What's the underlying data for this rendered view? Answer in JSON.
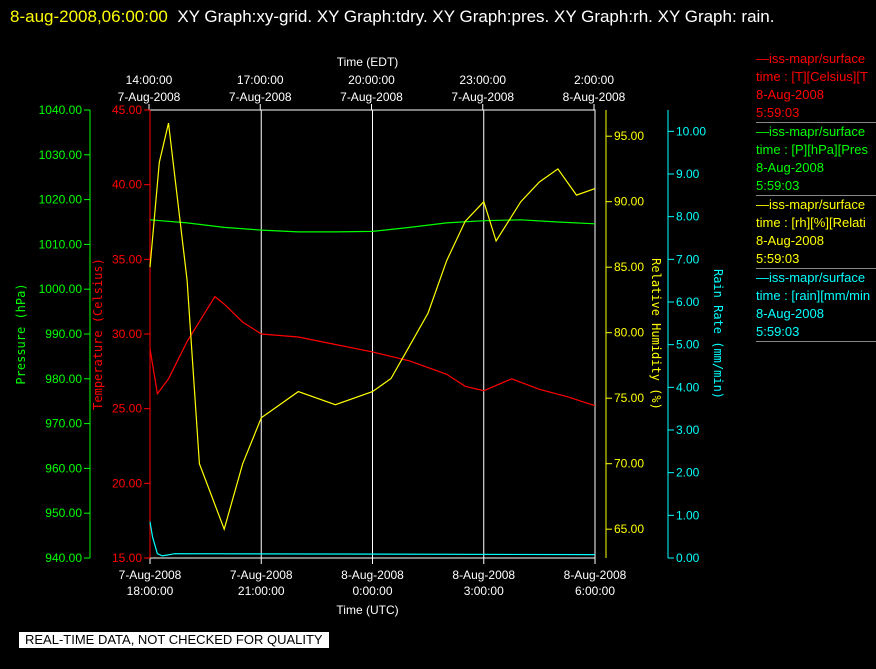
{
  "header": {
    "timestamp": "8-aug-2008,06:00:00",
    "title": "XY Graph:xy-grid.  XY Graph:tdry.  XY Graph:pres.  XY Graph:rh.  XY Graph: rain."
  },
  "notice": "REAL-TIME DATA, NOT CHECKED FOR QUALITY",
  "colors": {
    "temp": "#ff0000",
    "pres": "#00ff00",
    "rh": "#ffff00",
    "rain": "#00ffff",
    "grid": "#ffffff"
  },
  "legend": [
    {
      "line": "—iss-mapr/surface",
      "desc": "time : [T][Celsius][T",
      "date": "8-Aug-2008",
      "time": "5:59:03",
      "color": "#ff0000"
    },
    {
      "line": "—iss-mapr/surface",
      "desc": "time : [P][hPa][Pres",
      "date": "8-Aug-2008",
      "time": "5:59:03",
      "color": "#00ff00"
    },
    {
      "line": "—iss-mapr/surface",
      "desc": "time : [rh][%][Relati",
      "date": "8-Aug-2008",
      "time": "5:59:03",
      "color": "#ffff00"
    },
    {
      "line": "—iss-mapr/surface",
      "desc": "time : [rain][mm/min",
      "date": "8-Aug-2008",
      "time": "5:59:03",
      "color": "#00ffff"
    }
  ],
  "chart_data": {
    "type": "line",
    "x_top_label": "Time (EDT)",
    "x_bottom_label": "Time (UTC)",
    "x_top_ticks": [
      {
        "line1": "14:00:00",
        "line2": "7-Aug-2008"
      },
      {
        "line1": "17:00:00",
        "line2": "7-Aug-2008"
      },
      {
        "line1": "20:00:00",
        "line2": "7-Aug-2008"
      },
      {
        "line1": "23:00:00",
        "line2": "7-Aug-2008"
      },
      {
        "line1": "2:00:00",
        "line2": "8-Aug-2008"
      }
    ],
    "x_bottom_ticks": [
      {
        "line1": "7-Aug-2008",
        "line2": "18:00:00"
      },
      {
        "line1": "7-Aug-2008",
        "line2": "21:00:00"
      },
      {
        "line1": "8-Aug-2008",
        "line2": "0:00:00"
      },
      {
        "line1": "8-Aug-2008",
        "line2": "3:00:00"
      },
      {
        "line1": "8-Aug-2008",
        "line2": "6:00:00"
      }
    ],
    "xlim_hours_utc": [
      18.0,
      30.0
    ],
    "axes": {
      "pressure": {
        "label": "Pressure (hPa)",
        "range": [
          940,
          1040
        ],
        "ticks": [
          "940.00",
          "950.00",
          "960.00",
          "970.00",
          "980.00",
          "990.00",
          "1000.00",
          "1010.00",
          "1020.00",
          "1030.00",
          "1040.00"
        ]
      },
      "temperature": {
        "label": "Temperature (Celsius)",
        "range": [
          15,
          45
        ],
        "ticks": [
          "15.00",
          "20.00",
          "25.00",
          "30.00",
          "35.00",
          "40.00",
          "45.00"
        ]
      },
      "humidity": {
        "label": "Relative Humidity (%)",
        "range": [
          62.8,
          97.0
        ],
        "ticks": [
          "65.00",
          "70.00",
          "75.00",
          "80.00",
          "85.00",
          "90.00",
          "95.00"
        ]
      },
      "rain": {
        "label": "Rain Rate (mm/min)",
        "range": [
          0,
          10.5
        ],
        "ticks": [
          "0.00",
          "1.00",
          "2.00",
          "3.00",
          "4.00",
          "5.00",
          "6.00",
          "7.00",
          "8.00",
          "9.00",
          "10.00"
        ]
      }
    },
    "series": [
      {
        "name": "temperature",
        "axis": "temperature",
        "x": [
          "7-Aug 18:00",
          "7-Aug 18:12",
          "7-Aug 18:30",
          "7-Aug 19:00",
          "7-Aug 19:30",
          "7-Aug 19:45",
          "7-Aug 20:00",
          "7-Aug 20:30",
          "7-Aug 21:00",
          "7-Aug 22:00",
          "7-Aug 23:00",
          "8-Aug 0:00",
          "8-Aug 1:00",
          "8-Aug 2:00",
          "8-Aug 2:30",
          "8-Aug 3:00",
          "8-Aug 3:45",
          "8-Aug 4:30",
          "8-Aug 5:15",
          "8-Aug 6:00"
        ],
        "y": [
          29.0,
          26.0,
          27.0,
          29.5,
          31.5,
          32.5,
          32.0,
          30.8,
          30.0,
          29.8,
          29.3,
          28.8,
          28.2,
          27.3,
          26.5,
          26.2,
          27.0,
          26.3,
          25.8,
          25.2
        ]
      },
      {
        "name": "pressure",
        "axis": "pressure",
        "x": [
          "7-Aug 18:00",
          "7-Aug 19:00",
          "7-Aug 20:00",
          "7-Aug 21:00",
          "7-Aug 22:00",
          "7-Aug 23:00",
          "8-Aug 0:00",
          "8-Aug 1:00",
          "8-Aug 2:00",
          "8-Aug 3:00",
          "8-Aug 4:00",
          "8-Aug 5:00",
          "8-Aug 6:00"
        ],
        "y": [
          1015.5,
          1014.8,
          1013.8,
          1013.2,
          1012.8,
          1012.8,
          1012.9,
          1013.8,
          1014.8,
          1015.3,
          1015.5,
          1015.0,
          1014.6
        ]
      },
      {
        "name": "humidity",
        "axis": "humidity",
        "x": [
          "7-Aug 18:00",
          "7-Aug 18:15",
          "7-Aug 18:30",
          "7-Aug 18:45",
          "7-Aug 19:00",
          "7-Aug 19:20",
          "7-Aug 19:40",
          "7-Aug 20:00",
          "7-Aug 20:30",
          "7-Aug 21:00",
          "7-Aug 22:00",
          "7-Aug 23:00",
          "8-Aug 0:00",
          "8-Aug 0:30",
          "8-Aug 1:00",
          "8-Aug 1:30",
          "8-Aug 2:00",
          "8-Aug 2:30",
          "8-Aug 3:00",
          "8-Aug 3:20",
          "8-Aug 4:00",
          "8-Aug 4:30",
          "8-Aug 5:00",
          "8-Aug 5:30",
          "8-Aug 6:00"
        ],
        "y": [
          85.0,
          93.0,
          96.0,
          90.0,
          84.0,
          70.0,
          67.5,
          65.0,
          70.0,
          73.5,
          75.5,
          74.5,
          75.5,
          76.5,
          79.0,
          81.5,
          85.5,
          88.5,
          90.0,
          87.0,
          90.0,
          91.5,
          92.5,
          90.5,
          91.0
        ]
      },
      {
        "name": "rain",
        "axis": "rain",
        "x": [
          "7-Aug 18:00",
          "7-Aug 18:04",
          "7-Aug 18:08",
          "7-Aug 18:12",
          "7-Aug 18:20",
          "7-Aug 18:40",
          "8-Aug 6:00"
        ],
        "y": [
          0.85,
          0.5,
          0.3,
          0.1,
          0.05,
          0.1,
          0.08
        ]
      }
    ]
  }
}
